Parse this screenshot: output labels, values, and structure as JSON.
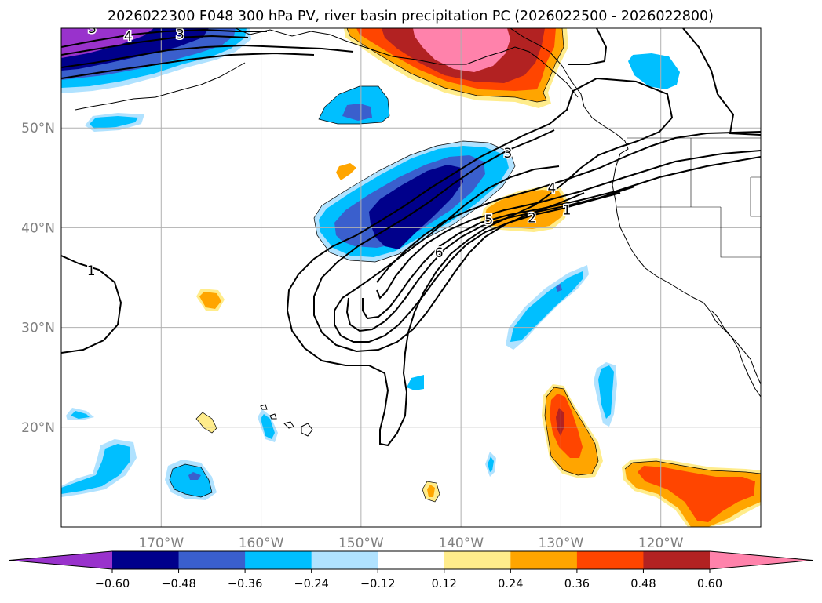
{
  "chart_data": {
    "type": "heatmap",
    "title": "2026022300 F048 300 hPa PV, river basin precipitation PC (2026022500 - 2026022800)",
    "map": {
      "lon_range": [
        -180,
        -110
      ],
      "lat_range": [
        10,
        60
      ],
      "lon_ticks": [
        -170,
        -160,
        -150,
        -140,
        -130,
        -120
      ],
      "lat_ticks": [
        20,
        30,
        40,
        50
      ],
      "lon_tick_labels": [
        "170°W",
        "160°W",
        "150°W",
        "140°W",
        "130°W",
        "120°W"
      ],
      "lat_tick_labels": [
        "20°N",
        "30°N",
        "40°N",
        "50°N"
      ],
      "grid": true
    },
    "colorbar": {
      "levels": [
        -0.72,
        -0.6,
        -0.48,
        -0.36,
        -0.24,
        -0.12,
        0.12,
        0.24,
        0.36,
        0.48,
        0.6,
        0.72
      ],
      "tick_values": [
        -0.6,
        -0.48,
        -0.36,
        -0.24,
        -0.12,
        0.12,
        0.24,
        0.36,
        0.48,
        0.6
      ],
      "tick_labels": [
        "−0.60",
        "−0.48",
        "−0.36",
        "−0.24",
        "−0.12",
        "0.12",
        "0.24",
        "0.36",
        "0.48",
        "0.60"
      ],
      "colors": [
        "#9932cc",
        "#00008b",
        "#3a5fcd",
        "#00bfff",
        "#b0e2ff",
        "#ffffff",
        "#ffec8b",
        "#ffa500",
        "#ff4500",
        "#b22222",
        "#ff82ab"
      ],
      "extend": "both"
    },
    "pv_contours": {
      "units": "PVU",
      "levels": [
        1,
        2,
        3,
        4,
        5,
        6
      ],
      "labels": [
        {
          "text": "1",
          "lon": -177,
          "lat": 35.7
        },
        {
          "text": "1",
          "lon": -129.4,
          "lat": 41.8
        },
        {
          "text": "2",
          "lon": -132.9,
          "lat": 41
        },
        {
          "text": "3",
          "lon": -135.3,
          "lat": 47.5
        },
        {
          "text": "4",
          "lon": -130.9,
          "lat": 44
        },
        {
          "text": "5",
          "lon": -137.2,
          "lat": 40.8
        },
        {
          "text": "6",
          "lon": -142.2,
          "lat": 37.5
        },
        {
          "text": "3",
          "lon": -176.9,
          "lat": 60
        },
        {
          "text": "4",
          "lon": -173.3,
          "lat": 59.2
        },
        {
          "text": "3",
          "lon": -168.1,
          "lat": 59.4
        }
      ]
    },
    "precip_pc_regions": [
      {
        "name": "jet-streak-negative",
        "lon_range": [
          -154,
          -136
        ],
        "lat_range": [
          34,
          49
        ],
        "min_value": -0.6
      },
      {
        "name": "gulf-of-alaska-positive",
        "lon_range": [
          -151,
          -128
        ],
        "lat_range": [
          51,
          60
        ],
        "max_value": 0.72
      },
      {
        "name": "subtropical-east-pacific-positive",
        "lon_range": [
          -138,
          -126
        ],
        "lat_range": [
          39,
          45
        ],
        "max_value": 0.24
      },
      {
        "name": "baja-positive",
        "lon_range": [
          -126,
          -110
        ],
        "lat_range": [
          10,
          17
        ],
        "max_value": 0.48
      },
      {
        "name": "hawaii-east-positive",
        "lon_range": [
          -132,
          -128
        ],
        "lat_range": [
          15,
          23
        ],
        "max_value": 0.48
      }
    ]
  }
}
